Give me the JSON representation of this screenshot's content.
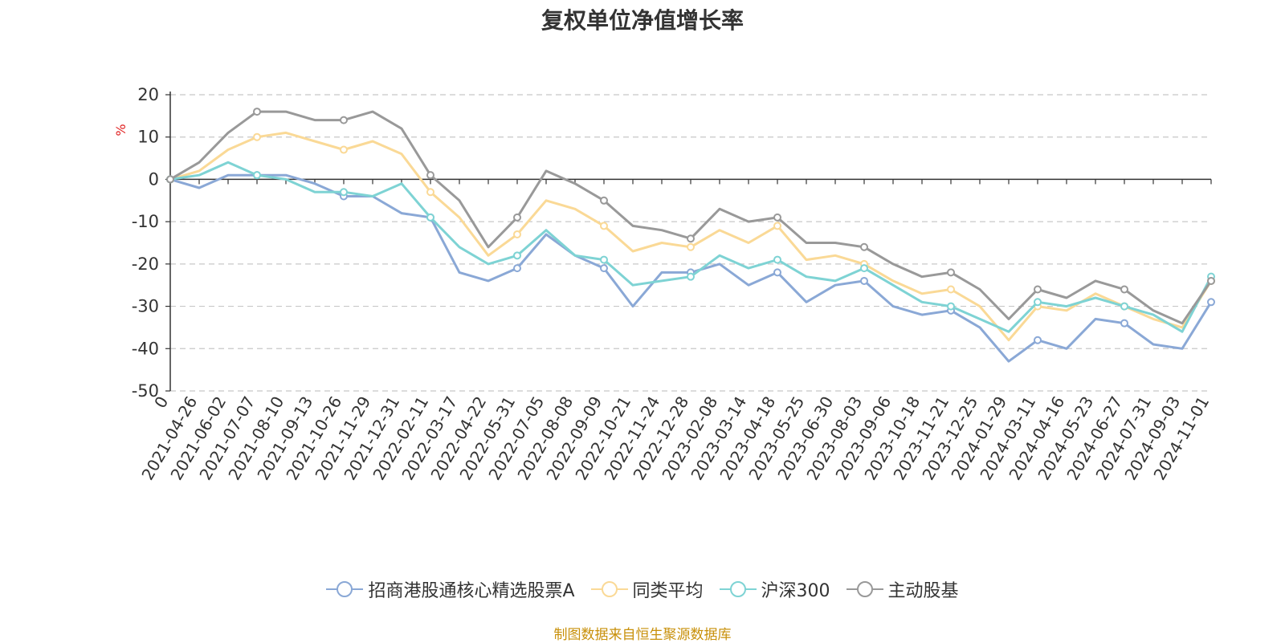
{
  "chart_data": {
    "type": "line",
    "title": "复权单位净值增长率",
    "ylabel": "%",
    "ylim": [
      -50,
      20
    ],
    "yticks": [
      20,
      10,
      0,
      -10,
      -20,
      -30,
      -40,
      -50
    ],
    "grid": true,
    "legend_position": "bottom",
    "x_tick_labels": [
      "0",
      "2021-04-26",
      "2021-06-02",
      "2021-07-07",
      "2021-08-10",
      "2021-09-13",
      "2021-10-26",
      "2021-11-29",
      "2021-12-31",
      "2022-02-11",
      "2022-03-17",
      "2022-04-22",
      "2022-05-31",
      "2022-07-05",
      "2022-08-08",
      "2022-09-09",
      "2022-10-21",
      "2022-11-24",
      "2022-12-28",
      "2023-02-08",
      "2023-03-14",
      "2023-04-18",
      "2023-05-25",
      "2023-06-30",
      "2023-08-03",
      "2023-09-06",
      "2023-10-18",
      "2023-11-21",
      "2023-12-25",
      "2024-01-29",
      "2024-03-11",
      "2024-04-16",
      "2024-05-23",
      "2024-06-27",
      "2024-07-31",
      "2024-09-03",
      "2024-11-01"
    ],
    "x": [
      "0",
      "2021-04-26",
      "2021-06-02",
      "2021-07-07",
      "2021-08-10",
      "2021-09-13",
      "2021-10-26",
      "2021-11-29",
      "2021-12-31",
      "2022-02-11",
      "2022-03-17",
      "2022-04-22",
      "2022-05-31",
      "2022-07-05",
      "2022-08-08",
      "2022-09-09",
      "2022-10-21",
      "2022-11-24",
      "2022-12-28",
      "2023-02-08",
      "2023-03-14",
      "2023-04-18",
      "2023-05-25",
      "2023-06-30",
      "2023-08-03",
      "2023-09-06",
      "2023-10-18",
      "2023-11-21",
      "2023-12-25",
      "2024-01-29",
      "2024-03-11",
      "2024-04-16",
      "2024-05-23",
      "2024-06-27",
      "2024-07-31",
      "2024-09-03",
      "2024-11-01"
    ],
    "series": [
      {
        "name": "招商港股通核心精选股票A",
        "color": "#8aa8d6",
        "values": [
          0,
          -2,
          1,
          1,
          1,
          -1,
          -4,
          -4,
          -8,
          -9,
          -22,
          -24,
          -21,
          -13,
          -18,
          -21,
          -30,
          -22,
          -22,
          -20,
          -25,
          -22,
          -29,
          -25,
          -24,
          -30,
          -32,
          -31,
          -35,
          -43,
          -38,
          -40,
          -33,
          -34,
          -39,
          -40,
          -29
        ]
      },
      {
        "name": "同类平均",
        "color": "#fad996",
        "values": [
          0,
          2,
          7,
          10,
          11,
          9,
          7,
          9,
          6,
          -3,
          -9,
          -18,
          -13,
          -5,
          -7,
          -11,
          -17,
          -15,
          -16,
          -12,
          -15,
          -11,
          -19,
          -18,
          -20,
          -24,
          -27,
          -26,
          -30,
          -38,
          -30,
          -31,
          -27,
          -30,
          -33,
          -35,
          -24
        ]
      },
      {
        "name": "沪深300",
        "color": "#7ed3d4",
        "values": [
          0,
          1,
          4,
          1,
          0,
          -3,
          -3,
          -4,
          -1,
          -9,
          -16,
          -20,
          -18,
          -12,
          -18,
          -19,
          -25,
          -24,
          -23,
          -18,
          -21,
          -19,
          -23,
          -24,
          -21,
          -25,
          -29,
          -30,
          -33,
          -36,
          -29,
          -30,
          -28,
          -30,
          -32,
          -36,
          -23
        ]
      },
      {
        "name": "主动股基",
        "color": "#999999",
        "values": [
          0,
          4,
          11,
          16,
          16,
          14,
          14,
          16,
          12,
          1,
          -5,
          -16,
          -9,
          2,
          -1,
          -5,
          -11,
          -12,
          -14,
          -7,
          -10,
          -9,
          -15,
          -15,
          -16,
          -20,
          -23,
          -22,
          -26,
          -33,
          -26,
          -28,
          -24,
          -26,
          -31,
          -34,
          -24
        ]
      }
    ]
  },
  "source_note": "制图数据来自恒生聚源数据库"
}
